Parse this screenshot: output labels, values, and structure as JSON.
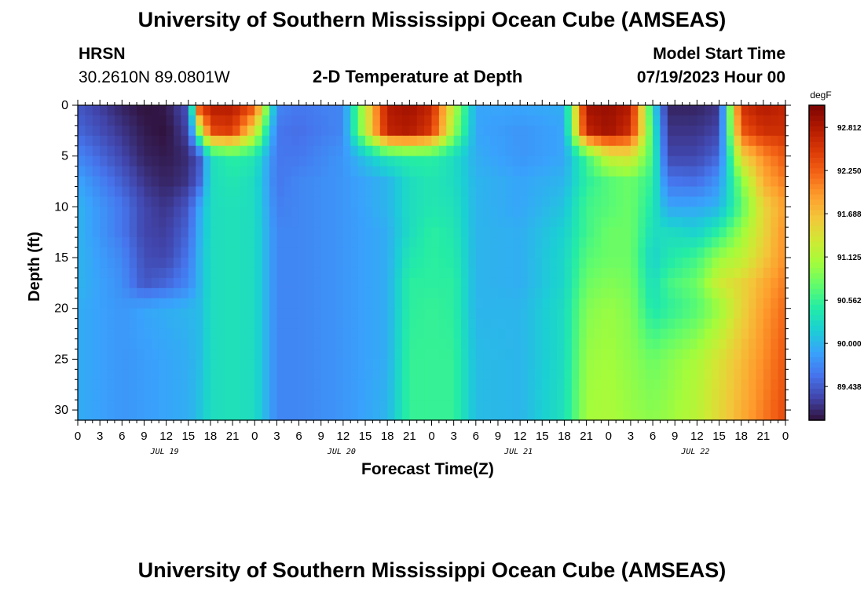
{
  "header": {
    "title": "University of Southern Mississippi Ocean Cube (AMSEAS)",
    "station": "HRSN",
    "coords": "30.2610N  89.0801W",
    "plot_title": "2-D Temperature at Depth",
    "model_start_label": "Model Start Time",
    "model_start_value": "07/19/2023 Hour 00"
  },
  "footer": {
    "title": "University of Southern Mississippi Ocean Cube (AMSEAS)"
  },
  "chart_data": {
    "type": "heatmap",
    "title": "2-D Temperature at Depth",
    "xlabel": "Forecast Time(Z)",
    "ylabel": "Depth (ft)",
    "x_tick_labels": [
      "0",
      "3",
      "6",
      "9",
      "12",
      "15",
      "18",
      "21",
      "0",
      "3",
      "6",
      "9",
      "12",
      "15",
      "18",
      "21",
      "0",
      "3",
      "6",
      "9",
      "12",
      "15",
      "18",
      "21",
      "0",
      "3",
      "6",
      "9",
      "12",
      "15",
      "18",
      "21",
      "0"
    ],
    "x_day_labels": [
      "JUL 19",
      "JUL 20",
      "JUL 21",
      "JUL 22"
    ],
    "xlim_hours": [
      0,
      96
    ],
    "y_ticks": [
      0,
      5,
      10,
      15,
      20,
      25,
      30
    ],
    "ylim": [
      0,
      31
    ],
    "y_inverted": true,
    "colorbar": {
      "unit": "degF",
      "min": 89.0,
      "max": 93.1,
      "tick_labels": [
        "92.812",
        "92.250",
        "91.688",
        "91.125",
        "90.562",
        "90.000",
        "89.438"
      ],
      "tick_values": [
        92.812,
        92.25,
        91.688,
        91.125,
        90.562,
        90.0,
        89.438
      ],
      "colors": [
        "#30123b",
        "#4145ab",
        "#4675ed",
        "#39a2fc",
        "#1bcfd4",
        "#24eca6",
        "#61fc6c",
        "#a4fc3b",
        "#d1e834",
        "#f3c63a",
        "#fe9b2d",
        "#f36315",
        "#d93806",
        "#b11901",
        "#7a0403"
      ]
    },
    "hours": [
      0,
      6,
      9,
      12,
      15,
      16.5,
      18,
      21,
      24,
      27,
      30,
      36,
      42,
      45,
      48,
      51,
      54,
      60,
      66,
      69,
      72,
      75,
      78,
      80,
      84,
      87,
      90,
      93,
      96
    ],
    "depths": [
      0,
      2.5,
      5,
      7.5,
      10,
      12.5,
      15,
      17.5,
      20,
      25,
      31
    ],
    "values": [
      [
        89.4,
        89.1,
        89.0,
        89.05,
        89.4,
        92.5,
        92.8,
        92.8,
        92.4,
        89.7,
        89.6,
        89.7,
        92.8,
        92.9,
        92.7,
        91.2,
        89.9,
        89.9,
        89.95,
        92.9,
        92.95,
        92.8,
        90.3,
        89.1,
        89.1,
        89.2,
        92.6,
        92.8,
        92.7
      ],
      [
        89.5,
        89.2,
        89.05,
        89.0,
        89.3,
        91.0,
        92.4,
        92.5,
        91.4,
        89.6,
        89.55,
        89.7,
        92.7,
        92.8,
        92.5,
        91.0,
        89.9,
        89.8,
        89.9,
        92.7,
        92.9,
        92.6,
        90.5,
        89.2,
        89.2,
        89.3,
        92.3,
        92.6,
        92.6
      ],
      [
        89.7,
        89.3,
        89.1,
        89.05,
        89.15,
        89.4,
        90.3,
        90.5,
        90.4,
        89.6,
        89.6,
        89.8,
        90.4,
        90.5,
        90.5,
        90.3,
        89.95,
        89.8,
        89.9,
        90.6,
        91.3,
        91.4,
        90.6,
        89.3,
        89.3,
        89.5,
        91.5,
        92.0,
        92.3
      ],
      [
        89.9,
        89.45,
        89.2,
        89.1,
        89.2,
        89.5,
        90.3,
        90.4,
        90.3,
        89.6,
        89.7,
        89.8,
        90.0,
        90.3,
        90.4,
        90.3,
        90.0,
        89.9,
        90.0,
        90.5,
        90.7,
        90.8,
        90.5,
        89.6,
        89.55,
        89.8,
        90.9,
        91.8,
        92.1
      ],
      [
        90.0,
        89.6,
        89.3,
        89.2,
        89.4,
        89.9,
        90.3,
        90.35,
        90.3,
        89.65,
        89.7,
        89.8,
        90.0,
        90.3,
        90.4,
        90.35,
        90.0,
        89.9,
        90.1,
        90.6,
        90.7,
        90.8,
        90.4,
        89.9,
        89.9,
        90.0,
        90.7,
        91.5,
        91.9
      ],
      [
        90.0,
        89.6,
        89.3,
        89.25,
        89.5,
        89.95,
        90.3,
        90.35,
        90.3,
        89.7,
        89.7,
        89.8,
        89.95,
        90.3,
        90.5,
        90.4,
        90.0,
        89.95,
        90.2,
        90.6,
        90.8,
        90.8,
        90.3,
        90.3,
        90.2,
        90.5,
        91.0,
        91.5,
        92.0
      ],
      [
        90.0,
        89.7,
        89.35,
        89.3,
        89.6,
        90.0,
        90.3,
        90.35,
        90.3,
        89.7,
        89.7,
        89.8,
        89.95,
        90.4,
        90.5,
        90.45,
        90.0,
        89.95,
        90.25,
        90.7,
        90.8,
        90.8,
        90.2,
        90.4,
        90.6,
        91.0,
        91.2,
        91.6,
        92.0
      ],
      [
        90.0,
        89.75,
        89.4,
        89.5,
        89.7,
        90.0,
        90.3,
        90.35,
        90.3,
        89.7,
        89.7,
        89.8,
        89.95,
        90.5,
        90.5,
        90.5,
        90.0,
        89.95,
        90.25,
        90.8,
        90.9,
        90.85,
        90.3,
        90.6,
        90.8,
        91.3,
        91.5,
        91.8,
        92.1
      ],
      [
        89.95,
        89.8,
        89.9,
        89.95,
        90.0,
        90.05,
        90.3,
        90.35,
        90.3,
        89.7,
        89.7,
        89.8,
        89.95,
        90.5,
        90.55,
        90.5,
        90.0,
        90.0,
        90.3,
        90.9,
        91.0,
        90.9,
        90.4,
        90.5,
        90.7,
        91.0,
        91.5,
        91.9,
        92.2
      ],
      [
        89.95,
        89.8,
        89.85,
        89.9,
        89.95,
        90.05,
        90.3,
        90.35,
        90.3,
        89.7,
        89.7,
        89.8,
        89.95,
        90.55,
        90.55,
        90.55,
        90.05,
        90.0,
        90.3,
        91.0,
        91.05,
        90.95,
        90.8,
        90.9,
        91.1,
        91.4,
        91.7,
        92.0,
        92.3
      ],
      [
        89.95,
        89.8,
        89.85,
        89.9,
        89.95,
        90.1,
        90.3,
        90.35,
        90.3,
        89.7,
        89.7,
        89.8,
        90.0,
        90.55,
        90.55,
        90.55,
        90.05,
        90.0,
        90.35,
        91.05,
        91.1,
        91.0,
        90.95,
        91.0,
        91.2,
        91.5,
        91.8,
        92.1,
        92.4
      ]
    ]
  }
}
